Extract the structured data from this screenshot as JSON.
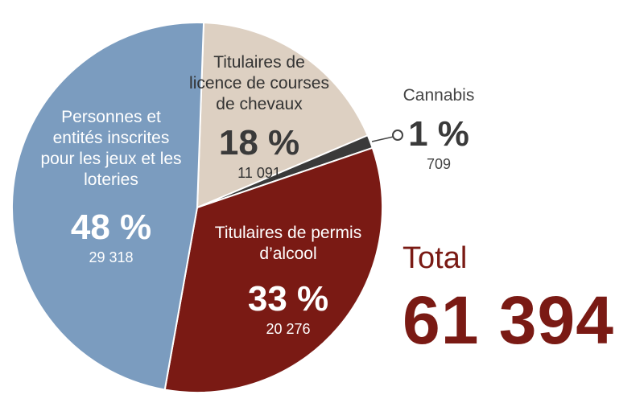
{
  "chart_data": {
    "type": "pie",
    "title": "",
    "slices": [
      {
        "name_lines": [
          "Titulaires de",
          "licence de courses",
          "de chevaux"
        ],
        "percent": 18,
        "percent_label": "18 %",
        "count": 11091,
        "count_label": "11 091",
        "color": "#ddd0c2"
      },
      {
        "name_lines": [
          "Cannabis"
        ],
        "percent": 1,
        "percent_label": "1 %",
        "count": 709,
        "count_label": "709",
        "color": "#3a3a3a"
      },
      {
        "name_lines": [
          "Titulaires de permis",
          "d’alcool"
        ],
        "percent": 33,
        "percent_label": "33 %",
        "count": 20276,
        "count_label": "20 276",
        "color": "#7a1a14"
      },
      {
        "name_lines": [
          "Personnes et",
          "entités inscrites",
          "pour les jeux et les",
          "loteries"
        ],
        "percent": 48,
        "percent_label": "48 %",
        "count": 29318,
        "count_label": "29 318",
        "color": "#7b9cbf"
      }
    ]
  },
  "total": {
    "label": "Total",
    "value": "61 394"
  }
}
